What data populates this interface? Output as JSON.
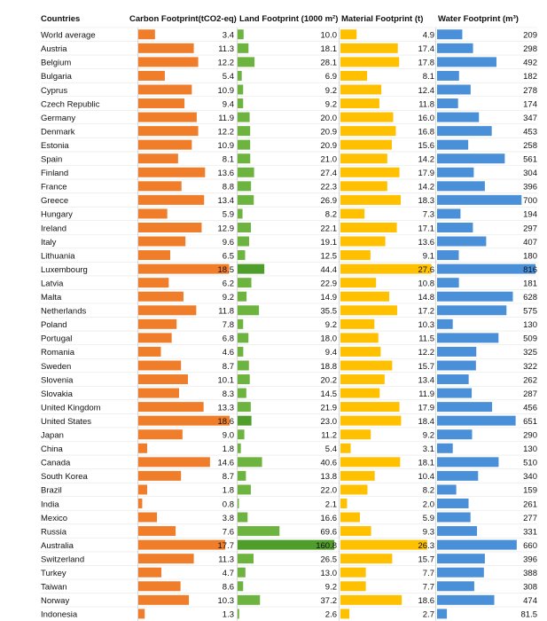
{
  "chart_data": {
    "type": "bar",
    "layout": "table-of-horizontal-bars",
    "column_header": "Countries",
    "categories": [
      "World average",
      "Austria",
      "Belgium",
      "Bulgaria",
      "Cyprus",
      "Czech Republic",
      "Germany",
      "Denmark",
      "Estonia",
      "Spain",
      "Finland",
      "France",
      "Greece",
      "Hungary",
      "Ireland",
      "Italy",
      "Lithuania",
      "Luxembourg",
      "Latvia",
      "Malta",
      "Netherlands",
      "Poland",
      "Portugal",
      "Romania",
      "Sweden",
      "Slovenia",
      "Slovakia",
      "United Kingdom",
      "United States",
      "Japan",
      "China",
      "Canada",
      "South Korea",
      "Brazil",
      "India",
      "Mexico",
      "Russia",
      "Australia",
      "Switzerland",
      "Turkey",
      "Taiwan",
      "Norway",
      "Indonesia"
    ],
    "series": [
      {
        "name": "Carbon Footprint(tCO2-eq)",
        "color": "#f07d2a",
        "highlight_color": "#f07d2a",
        "values": [
          3.4,
          11.3,
          12.2,
          5.4,
          10.9,
          9.4,
          11.9,
          12.2,
          10.9,
          8.1,
          13.6,
          8.8,
          13.4,
          5.9,
          12.9,
          9.6,
          6.5,
          18.5,
          6.2,
          9.2,
          11.8,
          7.8,
          6.8,
          4.6,
          8.7,
          10.1,
          8.3,
          13.3,
          18.6,
          9.0,
          1.8,
          14.6,
          8.7,
          1.8,
          0.8,
          3.8,
          7.6,
          17.7,
          11.3,
          4.7,
          8.6,
          10.3,
          1.3
        ],
        "value_labels": [
          "3.4",
          "11.3",
          "12.2",
          "5.4",
          "10.9",
          "9.4",
          "11.9",
          "12.2",
          "10.9",
          "8.1",
          "13.6",
          "8.8",
          "13.4",
          "5.9",
          "12.9",
          "9.6",
          "6.5",
          "18.5",
          "6.2",
          "9.2",
          "11.8",
          "7.8",
          "6.8",
          "4.6",
          "8.7",
          "10.1",
          "8.3",
          "13.3",
          "18.6",
          "9.0",
          "1.8",
          "14.6",
          "8.7",
          "1.8",
          "0.8",
          "3.8",
          "7.6",
          "17.7",
          "11.3",
          "4.7",
          "8.6",
          "10.3",
          "1.3"
        ],
        "max": 19.5
      },
      {
        "name": "Land Footprint (1000 m²)",
        "color": "#6cb33f",
        "highlight_color": "#4f9d2a",
        "values": [
          10.0,
          18.1,
          28.1,
          6.9,
          9.2,
          9.2,
          20.0,
          20.9,
          20.9,
          21.0,
          27.4,
          22.3,
          26.9,
          8.2,
          22.1,
          19.1,
          12.5,
          44.4,
          22.9,
          14.9,
          35.5,
          9.2,
          18.0,
          9.4,
          18.8,
          20.2,
          14.5,
          21.9,
          23.0,
          11.2,
          5.4,
          40.6,
          13.8,
          22.0,
          2.1,
          16.6,
          69.6,
          160.8,
          26.5,
          13.0,
          9.2,
          37.2,
          2.6
        ],
        "value_labels": [
          "10.0",
          "18.1",
          "28.1",
          "6.9",
          "9.2",
          "9.2",
          "20.0",
          "20.9",
          "20.9",
          "21.0",
          "27.4",
          "22.3",
          "26.9",
          "8.2",
          "22.1",
          "19.1",
          "12.5",
          "44.4",
          "22.9",
          "14.9",
          "35.5",
          "9.2",
          "18.0",
          "9.4",
          "18.8",
          "20.2",
          "14.5",
          "21.9",
          "23.0",
          "11.2",
          "5.4",
          "40.6",
          "13.8",
          "22.0",
          "2.1",
          "16.6",
          "69.6",
          "160.8",
          "26.5",
          "13.0",
          "9.2",
          "37.2",
          "2.6"
        ],
        "max": 165
      },
      {
        "name": "Material Footprint (t)",
        "color": "#ffc000",
        "highlight_color": "#ffc000",
        "values": [
          4.9,
          17.4,
          17.8,
          8.1,
          12.4,
          11.8,
          16.0,
          16.8,
          15.6,
          14.2,
          17.9,
          14.2,
          18.3,
          7.3,
          17.1,
          13.6,
          9.1,
          27.6,
          10.8,
          14.8,
          17.2,
          10.3,
          11.5,
          12.2,
          15.7,
          13.4,
          11.9,
          17.9,
          18.4,
          9.2,
          3.1,
          18.1,
          10.4,
          8.2,
          2.0,
          5.9,
          9.3,
          26.3,
          15.7,
          7.7,
          7.7,
          18.6,
          2.7
        ],
        "value_labels": [
          "4.9",
          "17.4",
          "17.8",
          "8.1",
          "12.4",
          "11.8",
          "16.0",
          "16.8",
          "15.6",
          "14.2",
          "17.9",
          "14.2",
          "18.3",
          "7.3",
          "17.1",
          "13.6",
          "9.1",
          "27.6",
          "10.8",
          "14.8",
          "17.2",
          "10.3",
          "11.5",
          "12.2",
          "15.7",
          "13.4",
          "11.9",
          "17.9",
          "18.4",
          "9.2",
          "3.1",
          "18.1",
          "10.4",
          "8.2",
          "2.0",
          "5.9",
          "9.3",
          "26.3",
          "15.7",
          "7.7",
          "7.7",
          "18.6",
          "2.7"
        ],
        "max": 28.5
      },
      {
        "name": "Water Footprint (m³)",
        "color": "#4a90d9",
        "highlight_color": "#4a90d9",
        "values": [
          209,
          298,
          492,
          182,
          278,
          174,
          347,
          453,
          258,
          561,
          304,
          396,
          700,
          194,
          297,
          407,
          180,
          816,
          181,
          628,
          575,
          130,
          509,
          325,
          322,
          262,
          287,
          456,
          651,
          290,
          130,
          510,
          340,
          159,
          261,
          277,
          331,
          660,
          396,
          388,
          308,
          474,
          81.5
        ],
        "value_labels": [
          "209",
          "298",
          "492",
          "182",
          "278",
          "174",
          "347",
          "453",
          "258",
          "561",
          "304",
          "396",
          "700",
          "194",
          "297",
          "407",
          "180",
          "816",
          "181",
          "628",
          "575",
          "130",
          "509",
          "325",
          "322",
          "262",
          "287",
          "456",
          "651",
          "290",
          "130",
          "510",
          "340",
          "159",
          "261",
          "277",
          "331",
          "660",
          "396",
          "388",
          "308",
          "474",
          "81.5"
        ],
        "max": 830
      }
    ],
    "highlighted_rows": [
      "Luxembourg",
      "United States",
      "Australia"
    ],
    "grid": false,
    "legend": "none"
  }
}
